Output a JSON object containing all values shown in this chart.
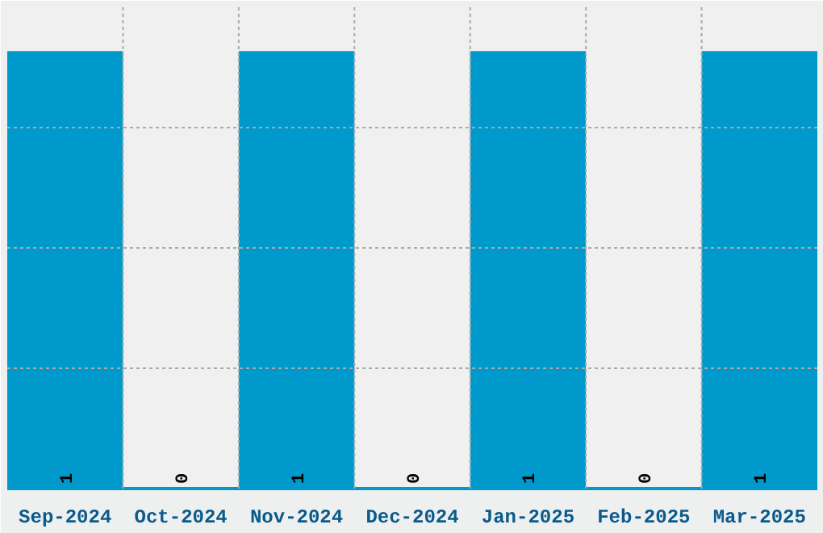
{
  "chart_data": {
    "type": "bar",
    "tick_labels": "x",
    "categories": [
      "Sep-2024",
      "Oct-2024",
      "Nov-2024",
      "Dec-2024",
      "Jan-2025",
      "Feb-2025",
      "Mar-2025"
    ],
    "values": [
      1,
      0,
      1,
      0,
      1,
      0,
      1
    ],
    "color": "#0099cc",
    "data_labels": true,
    "grid": true
  }
}
